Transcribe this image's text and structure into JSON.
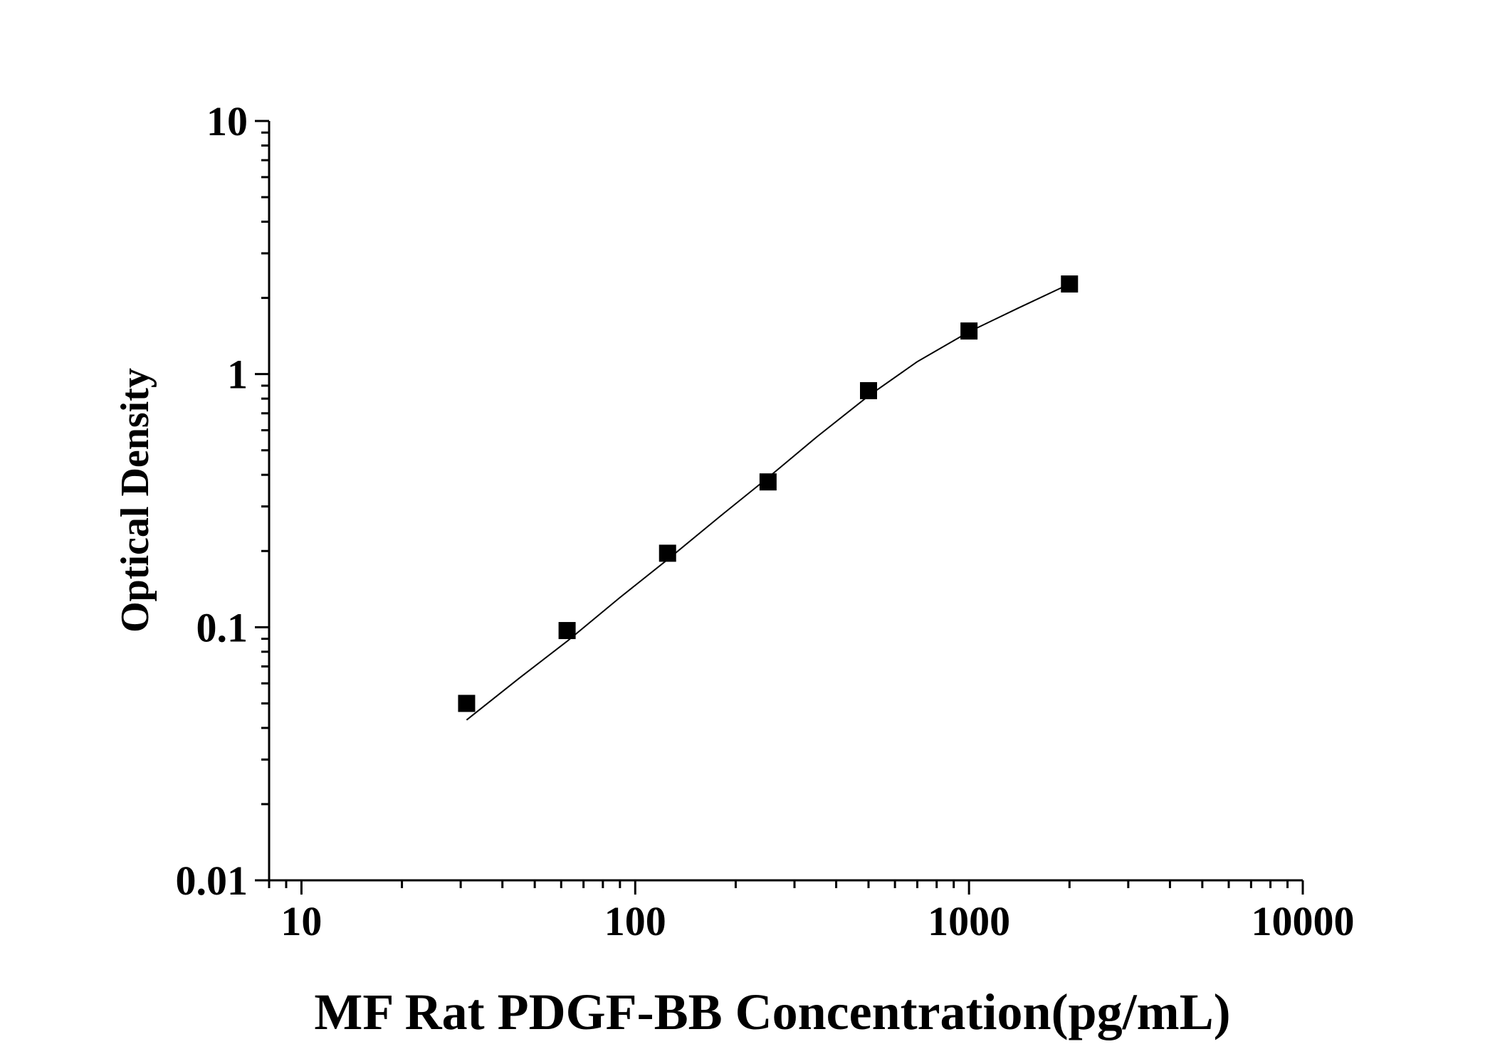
{
  "chart_data": {
    "type": "scatter",
    "title": "",
    "xlabel": "MF Rat PDGF-BB Concentration(pg/mL)",
    "ylabel": "Optical Density",
    "xscale": "log",
    "yscale": "log",
    "xlim": [
      8,
      10000
    ],
    "ylim": [
      0.01,
      10
    ],
    "xticks": [
      {
        "value": 10,
        "label": "10"
      },
      {
        "value": 100,
        "label": "100"
      },
      {
        "value": 1000,
        "label": "1000"
      },
      {
        "value": 10000,
        "label": "10000"
      }
    ],
    "yticks": [
      {
        "value": 0.01,
        "label": "0.01"
      },
      {
        "value": 0.1,
        "label": "0.1"
      },
      {
        "value": 1,
        "label": "1"
      },
      {
        "value": 10,
        "label": "10"
      }
    ],
    "grid": false,
    "legend": "none",
    "series": [
      {
        "marker": "square",
        "color": "#000000",
        "x": [
          31.25,
          62.5,
          125,
          250,
          500,
          1000,
          2000
        ],
        "y": [
          0.05,
          0.097,
          0.196,
          0.375,
          0.86,
          1.48,
          2.27
        ]
      }
    ],
    "fit_curve": {
      "color": "#000000",
      "x": [
        31.25,
        45,
        62.5,
        90,
        125,
        180,
        250,
        350,
        500,
        700,
        1000,
        1400,
        2000
      ],
      "y": [
        0.043,
        0.063,
        0.088,
        0.131,
        0.185,
        0.275,
        0.39,
        0.565,
        0.82,
        1.12,
        1.47,
        1.82,
        2.27
      ]
    }
  }
}
